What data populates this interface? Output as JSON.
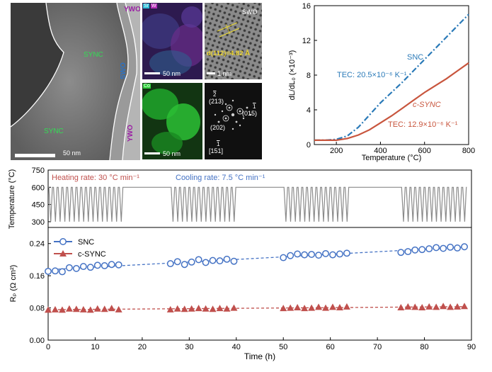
{
  "micrographs": {
    "stem": {
      "labels": {
        "ywo_top": "YWO",
        "sync_top": "SYNC",
        "swo": "SWO",
        "sync_bottom": "SYNC",
        "ywo_bottom": "YWO"
      },
      "scale_bar": "50 nm"
    },
    "eds_srw": {
      "legend_a": "Sr",
      "legend_b": "W",
      "scale_bar": "50 nm"
    },
    "hrtem": {
      "label": "SWO",
      "d_spacing": "d(112)=4.82 Å",
      "scale_bar": "1 nm"
    },
    "eds_co": {
      "legend": "Co",
      "scale_bar": "50 nm"
    },
    "fft": {
      "spot_213": "(213)",
      "spot_015": "(015)",
      "spot_202": "(202)",
      "zone_axis": "[151]",
      "bar_213": "2",
      "bar_015": "1",
      "bar_zone": "1"
    }
  },
  "chart_data": [
    {
      "type": "line",
      "xlabel": "Temperature (°C)",
      "ylabel": "dL/dL₀ (×10⁻³)",
      "xlim": [
        100,
        800
      ],
      "ylim": [
        0,
        16
      ],
      "xticks": [
        200,
        400,
        600,
        800
      ],
      "yticks": [
        0,
        4,
        8,
        12,
        16
      ],
      "series": [
        {
          "name": "SNC",
          "style": "dash-dot",
          "color": "#2a7ab8",
          "tec": "TEC: 20.5×10⁻⁶ K⁻¹",
          "x": [
            100,
            150,
            200,
            250,
            300,
            350,
            400,
            450,
            500,
            550,
            600,
            650,
            700,
            750,
            800
          ],
          "y": [
            0.5,
            0.5,
            0.6,
            1.0,
            2.0,
            3.4,
            4.8,
            6.0,
            7.2,
            8.5,
            9.8,
            11.1,
            12.4,
            13.7,
            15.0
          ]
        },
        {
          "name": "c-SYNC",
          "style": "solid",
          "color": "#c8553d",
          "tec": "TEC: 12.9×10⁻⁶ K⁻¹",
          "x": [
            100,
            150,
            200,
            250,
            300,
            350,
            400,
            450,
            500,
            550,
            600,
            650,
            700,
            750,
            800
          ],
          "y": [
            0.5,
            0.5,
            0.5,
            0.7,
            1.1,
            1.7,
            2.5,
            3.3,
            4.2,
            5.1,
            6.0,
            6.8,
            7.6,
            8.5,
            9.4
          ]
        }
      ]
    },
    {
      "type": "line",
      "ylabel": "Temperature (°C)",
      "ylim": [
        250,
        750
      ],
      "yticks": [
        300,
        450,
        600,
        750
      ],
      "xlim": [
        0,
        90
      ],
      "annotation_heating": "Heating rate: 30 °C min⁻¹",
      "annotation_cooling": "Cooling rate: 7.5 °C min⁻¹",
      "cycling_blocks": [
        [
          0,
          16
        ],
        [
          26,
          40
        ],
        [
          50,
          64
        ],
        [
          75,
          89
        ]
      ],
      "hold_blocks": [
        [
          16,
          26
        ],
        [
          40,
          50
        ],
        [
          64,
          75
        ]
      ],
      "cycle_period_h": 1.0,
      "t_low": 300,
      "t_high": 600
    },
    {
      "type": "scatter",
      "xlabel": "Time (h)",
      "ylabel": "Rₚ (Ω cm²)",
      "xlim": [
        0,
        90
      ],
      "ylim": [
        0.0,
        0.28
      ],
      "xticks": [
        0,
        10,
        20,
        30,
        40,
        50,
        60,
        70,
        80,
        90
      ],
      "yticks": [
        0.0,
        0.08,
        0.16,
        0.24
      ],
      "series": [
        {
          "name": "SNC",
          "marker": "open-circle",
          "color": "#4472c4",
          "x": [
            0,
            1.5,
            3,
            4.5,
            6,
            7.5,
            9,
            10.5,
            12,
            13.5,
            15,
            26,
            27.5,
            29,
            30.5,
            32,
            33.5,
            35,
            36.5,
            38,
            39.5,
            50,
            51.5,
            53,
            54.5,
            56,
            57.5,
            59,
            60.5,
            62,
            63.5,
            75,
            76.5,
            78,
            79.5,
            81,
            82.5,
            84,
            85.5,
            87,
            88.5
          ],
          "y": [
            0.171,
            0.172,
            0.17,
            0.18,
            0.178,
            0.183,
            0.181,
            0.186,
            0.185,
            0.188,
            0.187,
            0.19,
            0.195,
            0.188,
            0.194,
            0.2,
            0.193,
            0.198,
            0.197,
            0.201,
            0.196,
            0.205,
            0.21,
            0.214,
            0.212,
            0.213,
            0.211,
            0.215,
            0.212,
            0.214,
            0.216,
            0.218,
            0.22,
            0.224,
            0.225,
            0.227,
            0.23,
            0.228,
            0.231,
            0.229,
            0.232
          ]
        },
        {
          "name": "c-SYNC",
          "marker": "filled-triangle",
          "color": "#c0504d",
          "x": [
            0,
            1.5,
            3,
            4.5,
            6,
            7.5,
            9,
            10.5,
            12,
            13.5,
            15,
            26,
            27.5,
            29,
            30.5,
            32,
            33.5,
            35,
            36.5,
            38,
            39.5,
            50,
            51.5,
            53,
            54.5,
            56,
            57.5,
            59,
            60.5,
            62,
            63.5,
            75,
            76.5,
            78,
            79.5,
            81,
            82.5,
            84,
            85.5,
            87,
            88.5
          ],
          "y": [
            0.075,
            0.076,
            0.075,
            0.078,
            0.077,
            0.076,
            0.075,
            0.078,
            0.077,
            0.079,
            0.076,
            0.076,
            0.078,
            0.077,
            0.078,
            0.079,
            0.078,
            0.077,
            0.079,
            0.078,
            0.08,
            0.079,
            0.08,
            0.081,
            0.079,
            0.08,
            0.082,
            0.08,
            0.082,
            0.081,
            0.083,
            0.081,
            0.083,
            0.082,
            0.081,
            0.083,
            0.082,
            0.084,
            0.082,
            0.083,
            0.084
          ]
        }
      ]
    }
  ]
}
